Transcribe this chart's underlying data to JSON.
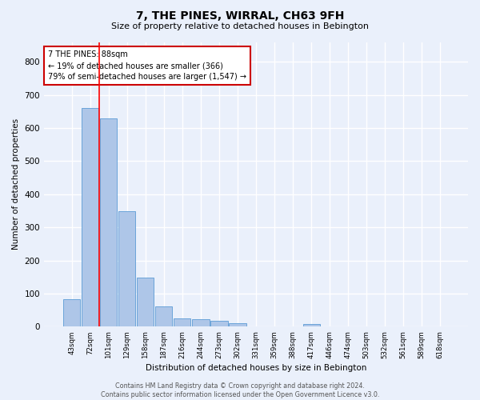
{
  "title": "7, THE PINES, WIRRAL, CH63 9FH",
  "subtitle": "Size of property relative to detached houses in Bebington",
  "xlabel": "Distribution of detached houses by size in Bebington",
  "ylabel": "Number of detached properties",
  "bin_labels": [
    "43sqm",
    "72sqm",
    "101sqm",
    "129sqm",
    "158sqm",
    "187sqm",
    "216sqm",
    "244sqm",
    "273sqm",
    "302sqm",
    "331sqm",
    "359sqm",
    "388sqm",
    "417sqm",
    "446sqm",
    "474sqm",
    "503sqm",
    "532sqm",
    "561sqm",
    "589sqm",
    "618sqm"
  ],
  "bar_heights": [
    83,
    660,
    630,
    348,
    148,
    60,
    25,
    22,
    18,
    10,
    0,
    0,
    0,
    8,
    0,
    0,
    0,
    0,
    0,
    0,
    0
  ],
  "bar_color": "#aec6e8",
  "bar_edge_color": "#5b9bd5",
  "red_line_x": 1.5,
  "annotation_line1": "7 THE PINES: 88sqm",
  "annotation_line2": "← 19% of detached houses are smaller (366)",
  "annotation_line3": "79% of semi-detached houses are larger (1,547) →",
  "annotation_box_color": "#ffffff",
  "annotation_box_edge_color": "#cc0000",
  "ylim": [
    0,
    860
  ],
  "yticks": [
    0,
    100,
    200,
    300,
    400,
    500,
    600,
    700,
    800
  ],
  "bg_color": "#eaf0fb",
  "grid_color": "#ffffff",
  "title_fontsize": 10,
  "subtitle_fontsize": 8,
  "footer_line1": "Contains HM Land Registry data © Crown copyright and database right 2024.",
  "footer_line2": "Contains public sector information licensed under the Open Government Licence v3.0."
}
